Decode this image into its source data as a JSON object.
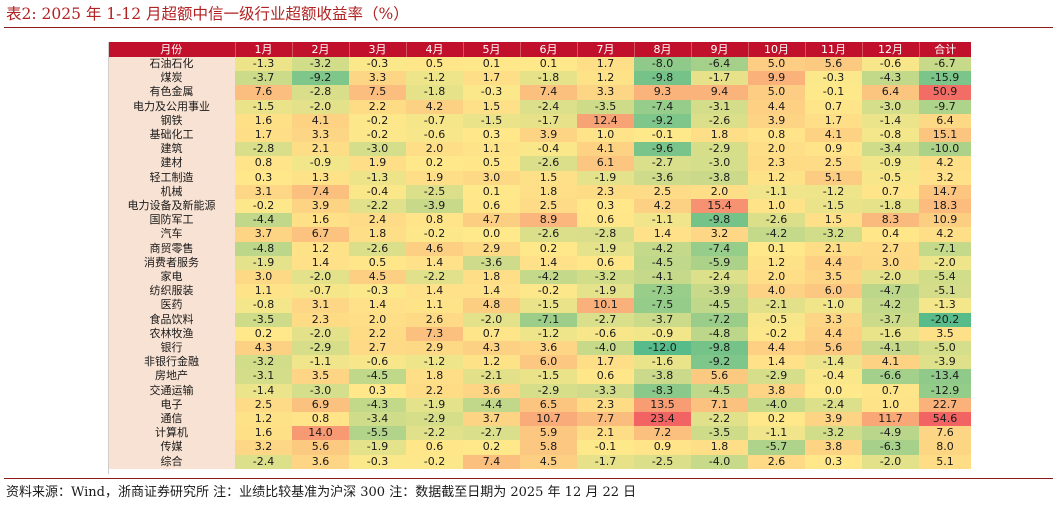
{
  "title": "表2:  2025 年 1-12 月超额中信一级行业超额收益率（%）",
  "note": "资料来源：Wind，浙商证券研究所  注：业绩比较基准为沪深 300  注：数据截至日期为 2025 年 12 月 22 日",
  "chart_data": {
    "type": "heatmap",
    "columns": [
      "月份",
      "1月",
      "2月",
      "3月",
      "4月",
      "5月",
      "6月",
      "7月",
      "8月",
      "9月",
      "10月",
      "11月",
      "12月",
      "合计"
    ],
    "rows": [
      {
        "name": "石油石化",
        "values": [
          -1.3,
          -3.2,
          -0.3,
          0.5,
          0.1,
          0.1,
          1.7,
          -8.0,
          -6.4,
          5.0,
          5.6,
          -0.6,
          -6.7
        ]
      },
      {
        "name": "煤炭",
        "values": [
          -3.7,
          -9.2,
          3.3,
          -1.2,
          1.7,
          -1.8,
          1.2,
          -9.8,
          -1.7,
          9.9,
          -0.3,
          -4.3,
          -15.9
        ]
      },
      {
        "name": "有色金属",
        "values": [
          7.6,
          -2.8,
          7.5,
          -1.8,
          -0.3,
          7.4,
          3.3,
          9.3,
          9.4,
          5.0,
          -0.1,
          6.4,
          50.9
        ]
      },
      {
        "name": "电力及公用事业",
        "values": [
          -1.5,
          -2.0,
          2.2,
          4.2,
          1.5,
          -2.4,
          -3.5,
          -7.4,
          -3.1,
          4.4,
          0.7,
          -3.0,
          -9.7
        ]
      },
      {
        "name": "钢铁",
        "values": [
          1.6,
          4.1,
          -0.2,
          -0.7,
          -1.5,
          -1.7,
          12.4,
          -9.2,
          -2.6,
          3.9,
          1.7,
          -1.4,
          6.4
        ]
      },
      {
        "name": "基础化工",
        "values": [
          1.7,
          3.3,
          -0.2,
          -0.6,
          0.3,
          3.9,
          1.0,
          -0.1,
          1.8,
          0.8,
          4.1,
          -0.8,
          15.1
        ]
      },
      {
        "name": "建筑",
        "values": [
          -2.8,
          2.1,
          -3.0,
          2.0,
          1.1,
          -0.4,
          4.1,
          -9.6,
          -2.9,
          2.0,
          0.9,
          -3.4,
          -10.0
        ]
      },
      {
        "name": "建材",
        "values": [
          0.8,
          -0.9,
          1.9,
          0.2,
          0.5,
          -2.6,
          6.1,
          -2.7,
          -3.0,
          2.3,
          2.5,
          -0.9,
          4.2
        ]
      },
      {
        "name": "轻工制造",
        "values": [
          0.3,
          1.3,
          -1.3,
          1.9,
          3.0,
          1.5,
          -1.9,
          -3.6,
          -3.8,
          1.2,
          5.1,
          -0.5,
          3.2
        ]
      },
      {
        "name": "机械",
        "values": [
          3.1,
          7.4,
          -0.4,
          -2.5,
          0.1,
          1.8,
          2.3,
          2.5,
          2.0,
          -1.1,
          -1.2,
          0.7,
          14.7
        ]
      },
      {
        "name": "电力设备及新能源",
        "values": [
          -0.2,
          3.9,
          -2.2,
          -3.9,
          0.6,
          2.5,
          0.3,
          4.2,
          15.4,
          1.0,
          -1.5,
          -1.8,
          18.3
        ]
      },
      {
        "name": "国防军工",
        "values": [
          -4.4,
          1.6,
          2.4,
          0.8,
          4.7,
          8.9,
          0.6,
          -1.1,
          -9.8,
          -2.6,
          1.5,
          8.3,
          10.9
        ]
      },
      {
        "name": "汽车",
        "values": [
          3.7,
          6.7,
          1.8,
          -0.2,
          0.0,
          -2.6,
          -2.8,
          1.4,
          3.2,
          -4.2,
          -3.2,
          0.4,
          4.2
        ]
      },
      {
        "name": "商贸零售",
        "values": [
          -4.8,
          1.2,
          -2.6,
          4.6,
          2.9,
          0.2,
          -1.9,
          -4.2,
          -7.4,
          0.1,
          2.1,
          2.7,
          -7.1
        ]
      },
      {
        "name": "消费者服务",
        "values": [
          -1.9,
          1.4,
          0.5,
          1.4,
          -3.6,
          1.4,
          0.6,
          -4.5,
          -5.9,
          1.2,
          4.4,
          3.0,
          -2.0
        ]
      },
      {
        "name": "家电",
        "values": [
          3.0,
          -2.0,
          4.5,
          -2.2,
          1.8,
          -4.2,
          -3.2,
          -4.1,
          -2.4,
          2.0,
          3.5,
          -2.0,
          -5.4
        ]
      },
      {
        "name": "纺织服装",
        "values": [
          1.1,
          -0.7,
          -0.3,
          1.4,
          1.4,
          -0.2,
          -1.9,
          -7.3,
          -3.9,
          4.0,
          6.0,
          -4.7,
          -5.1
        ]
      },
      {
        "name": "医药",
        "values": [
          -0.8,
          3.1,
          1.4,
          1.1,
          4.8,
          -1.5,
          10.1,
          -7.5,
          -4.5,
          -2.1,
          -1.0,
          -4.2,
          -1.3
        ]
      },
      {
        "name": "食品饮料",
        "values": [
          -3.5,
          2.3,
          2.0,
          2.6,
          -2.0,
          -7.1,
          -2.7,
          -3.7,
          -7.2,
          -0.5,
          3.3,
          -3.7,
          -20.2
        ]
      },
      {
        "name": "农林牧渔",
        "values": [
          0.2,
          -2.0,
          2.2,
          7.3,
          0.7,
          -1.2,
          -0.6,
          -0.9,
          -4.8,
          -0.2,
          4.4,
          -1.6,
          3.5
        ]
      },
      {
        "name": "银行",
        "values": [
          4.3,
          -2.9,
          2.7,
          2.9,
          4.3,
          3.6,
          -4.0,
          -12.0,
          -9.8,
          4.4,
          5.6,
          -4.1,
          -5.0
        ]
      },
      {
        "name": "非银行金融",
        "values": [
          -3.2,
          -1.1,
          -0.6,
          -1.2,
          1.2,
          6.0,
          1.7,
          -1.6,
          -9.2,
          1.4,
          -1.4,
          4.1,
          -3.9
        ]
      },
      {
        "name": "房地产",
        "values": [
          -3.1,
          3.5,
          -4.5,
          1.8,
          -2.1,
          -1.5,
          0.6,
          -3.8,
          5.6,
          -2.9,
          -0.4,
          -6.6,
          -13.4
        ]
      },
      {
        "name": "交通运输",
        "values": [
          -1.4,
          -3.0,
          0.3,
          2.2,
          3.6,
          -2.9,
          -3.3,
          -8.3,
          -4.5,
          3.8,
          0.0,
          0.7,
          -12.9
        ]
      },
      {
        "name": "电子",
        "values": [
          2.5,
          6.9,
          -4.3,
          -1.9,
          -4.4,
          6.5,
          2.3,
          13.5,
          7.1,
          -4.0,
          -2.4,
          1.0,
          22.7
        ]
      },
      {
        "name": "通信",
        "values": [
          1.2,
          0.8,
          -3.4,
          -2.9,
          3.7,
          10.7,
          7.7,
          23.4,
          -2.2,
          0.2,
          3.9,
          11.7,
          54.6
        ]
      },
      {
        "name": "计算机",
        "values": [
          1.6,
          14.0,
          -5.5,
          -2.2,
          -2.7,
          5.9,
          2.1,
          7.2,
          -3.5,
          -1.1,
          -3.2,
          -4.9,
          7.6
        ]
      },
      {
        "name": "传媒",
        "values": [
          3.2,
          5.6,
          -1.9,
          0.6,
          0.2,
          5.8,
          -0.1,
          0.9,
          1.8,
          -5.7,
          3.8,
          -6.3,
          8.0
        ]
      },
      {
        "name": "综合",
        "values": [
          -2.4,
          3.6,
          -0.3,
          -0.2,
          7.4,
          4.5,
          -1.7,
          -2.5,
          -4.0,
          2.6,
          0.3,
          -2.0,
          5.1
        ]
      }
    ],
    "color_scale": {
      "negative": "#57bb8a",
      "middle": "#ffe98a",
      "positive": "#f26464"
    },
    "title": "2025 年 1-12 月超额中信一级行业超额收益率（%）"
  }
}
